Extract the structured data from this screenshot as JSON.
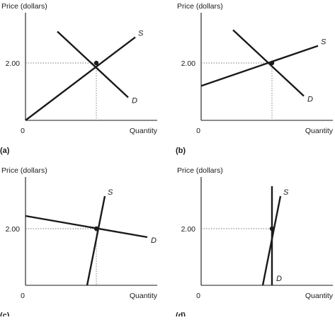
{
  "chart_data": [
    {
      "type": "line",
      "panel_label": "(a)",
      "ylabel": "Price (dollars)",
      "xlabel": "Quantity",
      "origin_label": "0",
      "y_tick": "2.00",
      "series": [
        {
          "name": "S",
          "points": [
            [
              0,
              0
            ],
            [
              1.55,
              2.9
            ]
          ]
        },
        {
          "name": "D",
          "points": [
            [
              0.45,
              3.1
            ],
            [
              1.45,
              0.8
            ]
          ]
        }
      ],
      "equilibrium": {
        "x": 1,
        "y": 2
      }
    },
    {
      "type": "line",
      "panel_label": "(b)",
      "ylabel": "Price (dollars)",
      "xlabel": "Quantity",
      "origin_label": "0",
      "y_tick": "2.00",
      "series": [
        {
          "name": "S",
          "points": [
            [
              0,
              1.2
            ],
            [
              1.65,
              2.6
            ]
          ]
        },
        {
          "name": "D",
          "points": [
            [
              0.45,
              3.15
            ],
            [
              1.45,
              0.85
            ]
          ]
        }
      ],
      "equilibrium": {
        "x": 1,
        "y": 2
      }
    },
    {
      "type": "line",
      "panel_label": "(c)",
      "ylabel": "Price (dollars)",
      "xlabel": "Quantity",
      "origin_label": "0",
      "y_tick": "2.00",
      "series": [
        {
          "name": "S",
          "points": [
            [
              0.87,
              0
            ],
            [
              1.12,
              3.15
            ]
          ]
        },
        {
          "name": "D",
          "points": [
            [
              0,
              2.45
            ],
            [
              1.72,
              1.7
            ]
          ]
        }
      ],
      "equilibrium": {
        "x": 1,
        "y": 2
      }
    },
    {
      "type": "line",
      "panel_label": "(d)",
      "ylabel": "Price (dollars)",
      "xlabel": "Quantity",
      "origin_label": "0",
      "y_tick": "2.00",
      "series": [
        {
          "name": "S",
          "points": [
            [
              0.87,
              0
            ],
            [
              1.12,
              3.15
            ]
          ]
        },
        {
          "name": "D",
          "points": [
            [
              1,
              3.5
            ],
            [
              1,
              0
            ]
          ]
        }
      ],
      "equilibrium": {
        "x": 1,
        "y": 2
      }
    }
  ]
}
